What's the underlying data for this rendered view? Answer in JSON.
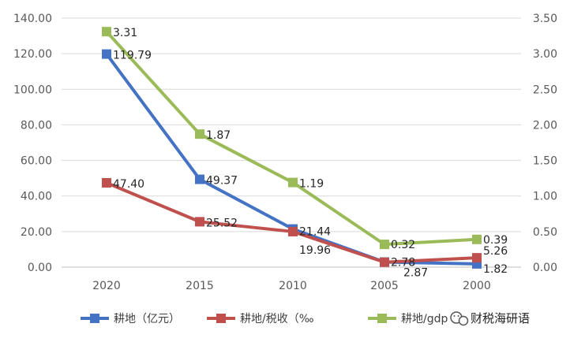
{
  "chart_data": {
    "type": "line",
    "categories": [
      "2020",
      "2015",
      "2010",
      "2005",
      "2000"
    ],
    "y_left": {
      "min": 0,
      "max": 140,
      "step": 20,
      "tick_labels": [
        "0.00",
        "20.00",
        "40.00",
        "60.00",
        "80.00",
        "100.00",
        "120.00",
        "140.00"
      ]
    },
    "y_right": {
      "min": 0,
      "max": 3.5,
      "step": 0.5,
      "tick_labels": [
        "0.00",
        "0.50",
        "1.00",
        "1.50",
        "2.00",
        "2.50",
        "3.00",
        "3.50"
      ]
    },
    "grid": true,
    "legend_position": "bottom",
    "series": [
      {
        "name": "耕地（亿元）",
        "axis": "left",
        "color": "#4472c4",
        "values": [
          119.79,
          49.37,
          21.44,
          2.87,
          1.82
        ],
        "labels": [
          "119.79",
          "49.37",
          "21.44",
          "2.87",
          "1.82"
        ]
      },
      {
        "name": "耕地/税收（‰",
        "axis": "left",
        "color": "#c0504d",
        "values": [
          47.4,
          25.52,
          19.96,
          2.78,
          5.26
        ],
        "labels": [
          "47.40",
          "25.52",
          "19.96",
          "2.78",
          "5.26"
        ]
      },
      {
        "name": "耕地/gdp",
        "axis": "right",
        "color": "#9bbb59",
        "values": [
          3.31,
          1.87,
          1.19,
          0.32,
          0.39
        ],
        "labels": [
          "3.31",
          "1.87",
          "1.19",
          "0.32",
          "0.39"
        ]
      }
    ]
  },
  "watermark": {
    "text": "财税海研语",
    "icon": "wechat-icon"
  }
}
